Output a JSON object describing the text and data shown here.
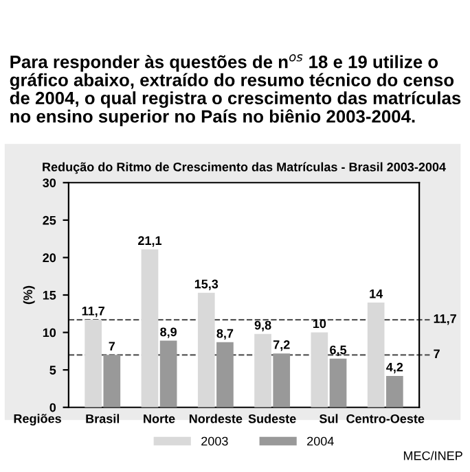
{
  "chart_data": {
    "type": "bar",
    "title": "Redução do Ritmo de Crescimento das Matrículas - Brasil 2003-2004",
    "annotations": [
      "Para responder às questões de n$^{os}$ 18 e 19 utilize o gráfico abaixo, extraído do resumo técnico do censo de 2004, o qual registra o crescimento das matrículas no ensino superior no País no biênio 2003-2004.",
      "MEC/INEP"
    ],
    "xlabel": "Regiões",
    "ylabel": "(%)",
    "categories": [
      "Brasil",
      "Norte",
      "Nordeste",
      "Sudeste",
      "Sul",
      "Centro-Oeste"
    ],
    "series": [
      {
        "name": "2003",
        "color": "#d9d9d9",
        "values": [
          11.7,
          21.1,
          15.3,
          9.8,
          10,
          14
        ],
        "value_labels": [
          "11,7",
          "21,1",
          "15,3",
          "9,8",
          "10",
          "14"
        ]
      },
      {
        "name": "2004",
        "color": "#999999",
        "values": [
          7,
          8.9,
          8.7,
          7.2,
          6.5,
          4.2
        ],
        "value_labels": [
          "7",
          "8,9",
          "8,7",
          "7,2",
          "6,5",
          "4,2"
        ]
      }
    ],
    "ylim": [
      0,
      30
    ],
    "yticks": [
      0,
      5,
      10,
      15,
      20,
      25,
      30
    ],
    "ref_lines": [
      {
        "axis": "y",
        "value": 11.7,
        "label": "11,7",
        "line_style": "dashed",
        "color": "#555555"
      },
      {
        "axis": "y",
        "value": 7,
        "label": "7",
        "line_style": "dashed",
        "color": "#555555"
      }
    ],
    "grid": false,
    "legend": "bottom"
  }
}
